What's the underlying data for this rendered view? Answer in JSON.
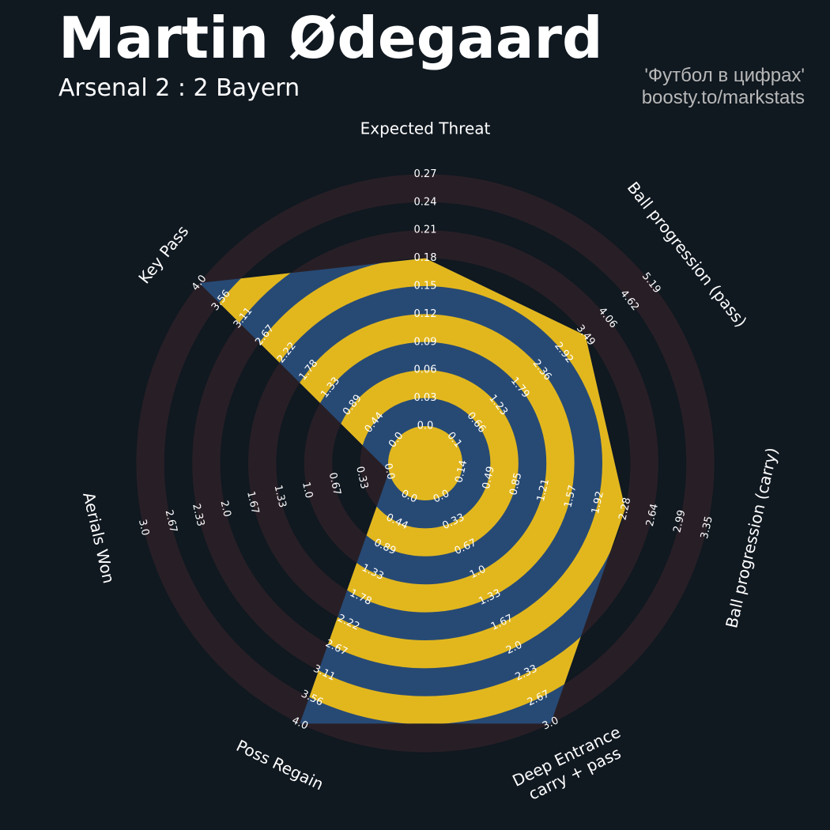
{
  "header": {
    "title": "Martin Ødegaard",
    "subtitle": "Arsenal 2 : 2 Bayern",
    "credit_line1": "'Футбол в цифрах'",
    "credit_line2": "boosty.to/markstats"
  },
  "colors": {
    "background": "#101820",
    "ring_dark": "#281f26",
    "polygon": "#274a75",
    "ring_accent": "#e2b71e"
  },
  "chart_data": {
    "type": "radar",
    "title": "Martin Ødegaard",
    "subtitle": "Arsenal 2 : 2 Bayern",
    "metrics": [
      {
        "label": "Expected Threat",
        "value": 0.18,
        "ticks": [
          "0.0",
          "0.03",
          "0.06",
          "0.09",
          "0.12",
          "0.15",
          "0.18",
          "0.21",
          "0.24",
          "0.27"
        ]
      },
      {
        "label": "Ball progression (pass)",
        "value": 3.49,
        "ticks": [
          "0.1",
          "0.66",
          "1.23",
          "1.79",
          "2.36",
          "2.92",
          "3.49",
          "4.06",
          "4.62",
          "5.19"
        ]
      },
      {
        "label": "Ball progression (carry)",
        "value": 2.28,
        "ticks": [
          "0.14",
          "0.49",
          "0.85",
          "1.21",
          "1.57",
          "1.92",
          "2.28",
          "2.64",
          "2.99",
          "3.35"
        ]
      },
      {
        "label": "Deep Entrance\ncarry + pass",
        "value": 3.0,
        "ticks": [
          "0.0",
          "0.33",
          "0.67",
          "1.0",
          "1.33",
          "1.67",
          "2.0",
          "2.33",
          "2.67",
          "3.0"
        ]
      },
      {
        "label": "Poss Regain",
        "value": 4.0,
        "ticks": [
          "0.0",
          "0.44",
          "0.89",
          "1.33",
          "1.78",
          "2.22",
          "2.67",
          "3.11",
          "3.56",
          "4.0"
        ]
      },
      {
        "label": "Aerials Won",
        "value": 0.0,
        "ticks": [
          "0.0",
          "0.33",
          "0.67",
          "1.0",
          "1.33",
          "1.67",
          "2.0",
          "2.33",
          "2.67",
          "3.0"
        ]
      },
      {
        "label": "Key Pass",
        "value": 4.0,
        "ticks": [
          "0.0",
          "0.44",
          "0.89",
          "1.33",
          "1.78",
          "2.22",
          "2.67",
          "3.11",
          "3.56",
          "4.0"
        ]
      }
    ]
  }
}
